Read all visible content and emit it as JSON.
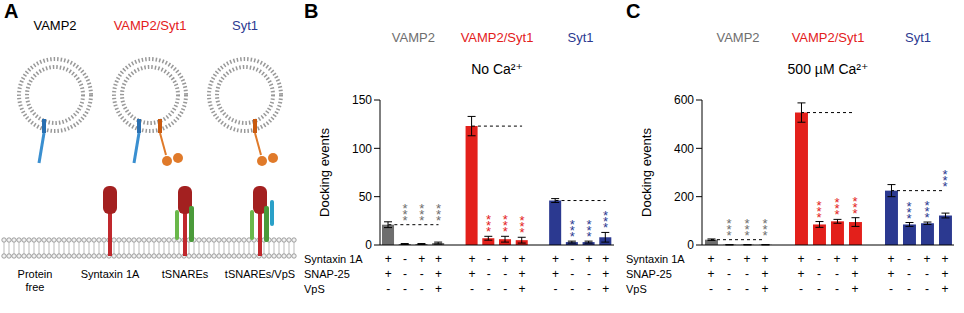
{
  "diagram": {
    "panel": "A",
    "vesicles": [
      {
        "label": "VAMP2",
        "color": "#000000"
      },
      {
        "label": "VAMP2/Syt1",
        "color": "#e3201b"
      },
      {
        "label": "Syt1",
        "color": "#2b3990"
      }
    ],
    "membranes": [
      "Protein free",
      "Syntaxin 1A",
      "tSNAREs",
      "tSNAREs/VpS"
    ]
  },
  "chart_data": [
    {
      "type": "bar",
      "panel": "B",
      "title": "No Ca²⁺",
      "y_label": "Docking events",
      "ylim": [
        0,
        150
      ],
      "yticks": [
        0,
        50,
        100,
        150
      ],
      "tick_labels": "y",
      "series": [
        {
          "name": "VAMP2",
          "color": "#6e6e6e",
          "values": [
            21,
            1,
            1,
            2
          ],
          "errors": [
            3,
            0.5,
            0.5,
            1
          ],
          "significance": [
            null,
            "***",
            "***",
            "***"
          ]
        },
        {
          "name": "VAMP2/Syt1",
          "color": "#e3201b",
          "values": [
            123,
            7,
            6,
            5
          ],
          "errors": [
            10,
            2,
            3,
            3
          ],
          "significance": [
            null,
            "***",
            "***",
            "***"
          ]
        },
        {
          "name": "Syt1",
          "color": "#2b3990",
          "values": [
            46,
            3,
            3,
            8
          ],
          "errors": [
            2,
            1,
            1,
            5
          ],
          "significance": [
            null,
            "***",
            "***",
            "***"
          ]
        }
      ],
      "conditions": [
        {
          "name": "Syntaxin 1A",
          "values": [
            "+",
            "-",
            "+",
            "+",
            "+",
            "-",
            "+",
            "+",
            "+",
            "-",
            "+",
            "+"
          ]
        },
        {
          "name": "SNAP-25",
          "values": [
            "+",
            "-",
            "-",
            "+",
            "+",
            "-",
            "-",
            "+",
            "+",
            "-",
            "-",
            "+"
          ]
        },
        {
          "name": "VpS",
          "values": [
            "-",
            "-",
            "-",
            "+",
            "-",
            "-",
            "-",
            "+",
            "-",
            "-",
            "-",
            "+"
          ]
        }
      ]
    },
    {
      "type": "bar",
      "panel": "C",
      "title": "500 µM Ca²⁺",
      "y_label": "Docking events",
      "ylim": [
        0,
        600
      ],
      "yticks": [
        0,
        200,
        400,
        600
      ],
      "tick_labels": "y",
      "series": [
        {
          "name": "VAMP2",
          "color": "#6e6e6e",
          "values": [
            22,
            1,
            1,
            1
          ],
          "errors": [
            3,
            0.5,
            0.5,
            0.5
          ],
          "significance": [
            null,
            "***",
            "***",
            "***"
          ]
        },
        {
          "name": "VAMP2/Syt1",
          "color": "#e3201b",
          "values": [
            548,
            85,
            98,
            95
          ],
          "errors": [
            40,
            12,
            8,
            18
          ],
          "significance": [
            null,
            "***",
            "***",
            "***"
          ]
        },
        {
          "name": "Syt1",
          "color": "#2b3990",
          "values": [
            225,
            85,
            90,
            122
          ],
          "errors": [
            25,
            8,
            5,
            10
          ],
          "significance": [
            null,
            "***",
            "***",
            "***"
          ]
        }
      ],
      "conditions": [
        {
          "name": "Syntaxin 1A",
          "values": [
            "+",
            "-",
            "+",
            "+",
            "+",
            "-",
            "+",
            "+",
            "+",
            "-",
            "+",
            "+"
          ]
        },
        {
          "name": "SNAP-25",
          "values": [
            "+",
            "-",
            "-",
            "+",
            "+",
            "-",
            "-",
            "+",
            "+",
            "-",
            "-",
            "+"
          ]
        },
        {
          "name": "VpS",
          "values": [
            "-",
            "-",
            "-",
            "+",
            "-",
            "-",
            "-",
            "+",
            "-",
            "-",
            "-",
            "+"
          ]
        }
      ]
    }
  ]
}
